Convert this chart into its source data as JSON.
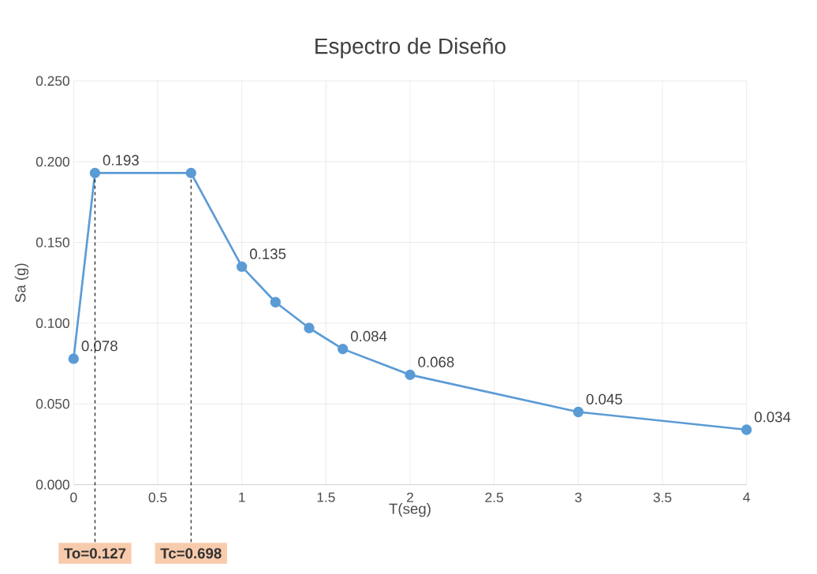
{
  "chart_data": {
    "type": "line",
    "title": "Espectro de Diseño",
    "xlabel": "T(seg)",
    "ylabel": "Sa (g)",
    "x": [
      0,
      0.127,
      0.698,
      1,
      1.2,
      1.4,
      1.6,
      2,
      3,
      4
    ],
    "series": [
      {
        "color": "#5b9bd5",
        "values": [
          0.078,
          0.193,
          0.193,
          0.135,
          0.113,
          0.097,
          0.084,
          0.068,
          0.045,
          0.034
        ],
        "value_labels": [
          "0.078",
          "0.193",
          null,
          "0.135",
          null,
          null,
          "0.084",
          "0.068",
          "0.045",
          "0.034"
        ]
      }
    ],
    "xlim": [
      0,
      4
    ],
    "xticks": [
      0,
      0.5,
      1,
      1.5,
      2,
      2.5,
      3,
      3.5,
      4
    ],
    "ylim": [
      0,
      0.25
    ],
    "yticks": [
      {
        "value": 0,
        "label": "0.000"
      },
      {
        "value": 0.05,
        "label": "0.050"
      },
      {
        "value": 0.1,
        "label": "0.100"
      },
      {
        "value": 0.15,
        "label": "0.150"
      },
      {
        "value": 0.2,
        "label": "0.200"
      },
      {
        "value": 0.25,
        "label": "0.250"
      }
    ],
    "grid": true,
    "marker": "circle",
    "line_style": "solid",
    "ref_lines": [
      {
        "axis": "x",
        "value": 0.127,
        "label": "To=0.127",
        "color": "#000000",
        "line_style": "dashed"
      },
      {
        "axis": "x",
        "value": 0.698,
        "label": "Tc=0.698",
        "color": "#000000",
        "line_style": "dashed"
      }
    ]
  }
}
